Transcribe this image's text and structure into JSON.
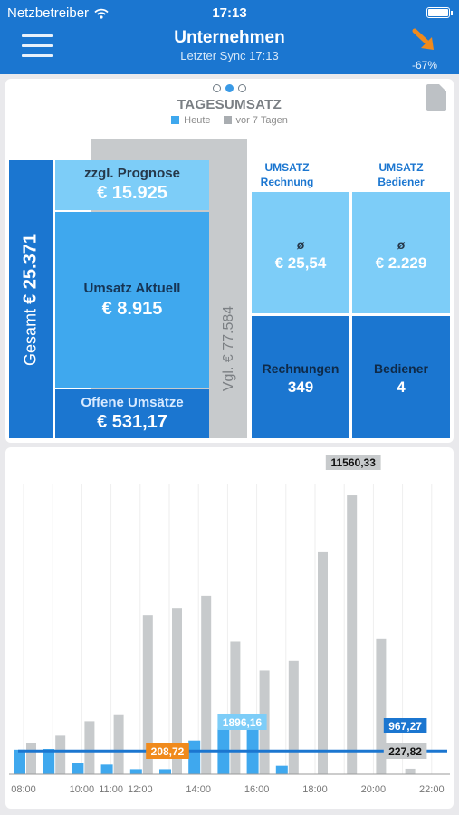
{
  "status": {
    "carrier": "Netzbetreiber",
    "time": "17:13"
  },
  "nav": {
    "title": "Unternehmen",
    "subtitle": "Letzter Sync 17:13",
    "trend": "-67%",
    "trend_color": "#f08a1c"
  },
  "card1": {
    "title": "TAGESUMSATZ",
    "legend": {
      "today": "Heute",
      "week": "vor 7 Tagen"
    },
    "colors": {
      "dark": "#1b76d0",
      "mid": "#3fa8ee",
      "light": "#7dcdf8",
      "grey": "#c7cacc"
    },
    "gesamt_label": "Gesamt",
    "gesamt_value": "€ 25.371",
    "vgl": "Vgl. € 77.584",
    "prognose": {
      "label": "zzgl. Prognose",
      "value": "€ 15.925"
    },
    "aktuell": {
      "label": "Umsatz Aktuell",
      "value": "€ 8.915"
    },
    "offen": {
      "label": "Offene Umsätze",
      "value": "€ 531,17"
    },
    "col_rechnung": {
      "head1": "UMSATZ",
      "head2": "Rechnung",
      "avg_symbol": "ø",
      "avg_value": "€ 25,54",
      "count_label": "Rechnungen",
      "count_value": "349"
    },
    "col_bediener": {
      "head1": "UMSATZ",
      "head2": "Bediener",
      "avg_symbol": "ø",
      "avg_value": "€ 2.229",
      "count_label": "Bediener",
      "count_value": "4"
    }
  },
  "chart_data": {
    "type": "bar",
    "x_tick_labels": [
      "08:00",
      "10:00",
      "11:00",
      "12:00",
      "14:00",
      "16:00",
      "18:00",
      "20:00",
      "22:00"
    ],
    "ylim": [
      0,
      12500
    ],
    "series": [
      {
        "name": "Heute",
        "color": "#3fa8ee",
        "hours": [
          8,
          9,
          10,
          11,
          12,
          13,
          14,
          15,
          16,
          17
        ],
        "values": [
          1020,
          1050,
          450,
          400,
          210,
          209,
          1400,
          1896,
          1896,
          350
        ]
      },
      {
        "name": "vor 7 Tagen",
        "color": "#c7cacc",
        "hours": [
          8,
          9,
          10,
          11,
          12,
          13,
          14,
          15,
          16,
          17,
          18,
          19,
          20,
          21
        ],
        "values": [
          1300,
          1600,
          2200,
          2450,
          6600,
          6900,
          7400,
          5500,
          4300,
          4700,
          9200,
          11560,
          5600,
          228
        ]
      }
    ],
    "reference_line": {
      "value": 967.27,
      "color": "#1b76d0"
    },
    "annotations": [
      {
        "text": "11560,33",
        "hour": 19
      },
      {
        "text": "1896,16",
        "hour": 15.5
      },
      {
        "text": "208,72",
        "hour": 13
      },
      {
        "text": "967,27",
        "hour": 21
      },
      {
        "text": "227,82",
        "hour": 21
      }
    ]
  }
}
